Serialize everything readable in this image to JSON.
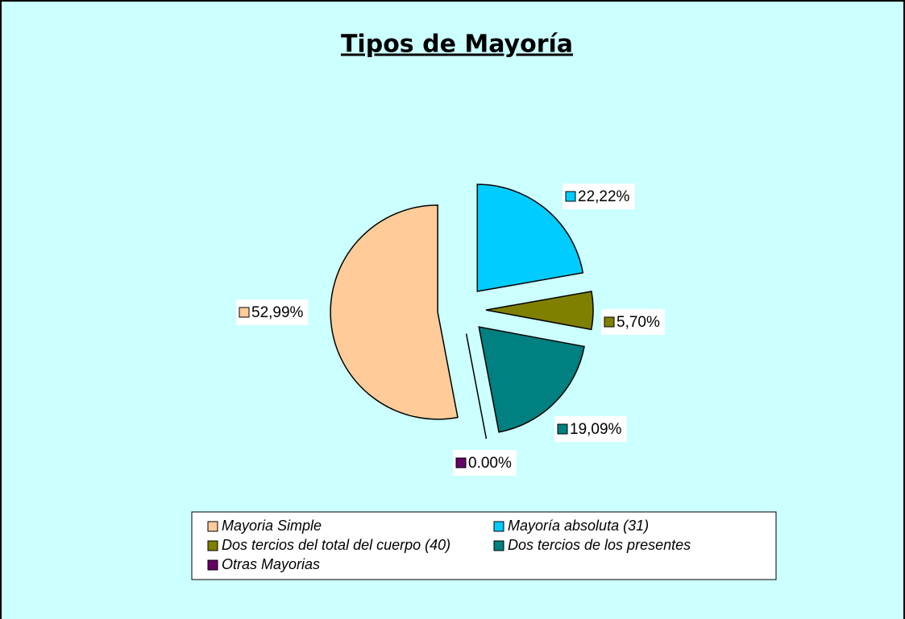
{
  "chart_data": {
    "type": "pie",
    "title": "Tipos de Mayoría",
    "categories": [
      "Mayoria  Simple",
      "Mayoría absoluta (31)",
      "Dos tercios del total del cuerpo (40)",
      "Dos tercios de los presentes",
      "Otras Mayorias"
    ],
    "values": [
      52.99,
      22.22,
      5.7,
      19.09,
      0.0
    ],
    "value_labels": [
      "52,99%",
      "22,22%",
      "5,70%",
      "19,09%",
      "0.00%"
    ],
    "colors": [
      "#FFCC99",
      "#00CCFF",
      "#808000",
      "#008080",
      "#660066"
    ],
    "legend": "bottom"
  }
}
